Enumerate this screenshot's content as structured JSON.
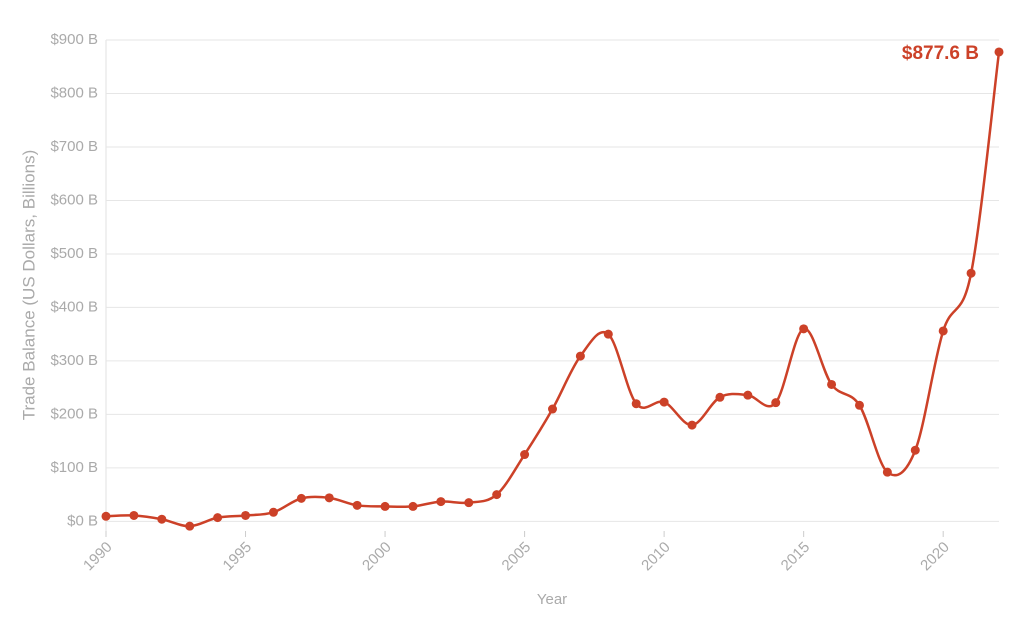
{
  "chart_data": {
    "type": "line",
    "x_label": "Year",
    "y_label": "Trade Balance (US Dollars, Billions)",
    "annotation": "$877.6 B",
    "x": [
      1990,
      1991,
      1992,
      1993,
      1994,
      1995,
      1996,
      1997,
      1998,
      1999,
      2000,
      2001,
      2002,
      2003,
      2004,
      2005,
      2006,
      2007,
      2008,
      2009,
      2010,
      2011,
      2012,
      2013,
      2014,
      2015,
      2016,
      2017,
      2018,
      2019,
      2020,
      2021,
      2022
    ],
    "series": [
      {
        "name": "Trade Balance",
        "color": "#cc4128",
        "values": [
          9.5,
          11,
          4,
          -9,
          7,
          11,
          17,
          43,
          44,
          30,
          28,
          28,
          37,
          35,
          50,
          125,
          210,
          309,
          350,
          220,
          223,
          180,
          232,
          236,
          222,
          360,
          256,
          217,
          92,
          133,
          356,
          464,
          877.6
        ]
      }
    ],
    "xlim": [
      1990,
      2022
    ],
    "xticks": [
      1990,
      1995,
      2000,
      2005,
      2010,
      2015,
      2020
    ],
    "ylim": [
      -18,
      900
    ],
    "yticks": [
      {
        "value": 0,
        "label": "$0 B"
      },
      {
        "value": 100,
        "label": "$100 B"
      },
      {
        "value": 200,
        "label": "$200 B"
      },
      {
        "value": 300,
        "label": "$300 B"
      },
      {
        "value": 400,
        "label": "$400 B"
      },
      {
        "value": 500,
        "label": "$500 B"
      },
      {
        "value": 600,
        "label": "$600 B"
      },
      {
        "value": 700,
        "label": "$700 B"
      },
      {
        "value": 800,
        "label": "$800 B"
      },
      {
        "value": 900,
        "label": "$900 B"
      }
    ],
    "grid": true
  }
}
